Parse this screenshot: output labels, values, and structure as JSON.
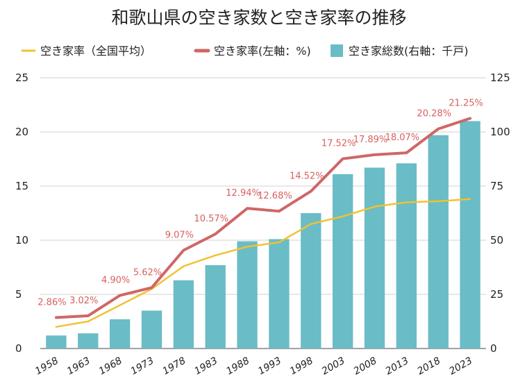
{
  "chart_data": {
    "type": "bar",
    "title": "和歌山県の空き家数と空き家率の推移",
    "categories": [
      "1958",
      "1963",
      "1968",
      "1973",
      "1978",
      "1983",
      "1988",
      "1993",
      "1998",
      "2003",
      "2008",
      "2013",
      "2018",
      "2023"
    ],
    "series": [
      {
        "name": "空き家率（全国平均）",
        "type": "line",
        "axis": "left",
        "color": "#f1c232",
        "values": [
          2.0,
          2.5,
          4.0,
          5.5,
          7.6,
          8.6,
          9.4,
          9.8,
          11.5,
          12.2,
          13.1,
          13.5,
          13.6,
          13.8
        ]
      },
      {
        "name": "空き家率(左軸：%)",
        "type": "line",
        "axis": "left",
        "color": "#d06666",
        "values": [
          2.86,
          3.02,
          4.9,
          5.62,
          9.07,
          10.57,
          12.94,
          12.68,
          14.52,
          17.52,
          17.89,
          18.07,
          20.28,
          21.25
        ],
        "labels": [
          "2.86%",
          "3.02%",
          "4.90%",
          "5.62%",
          "9.07%",
          "10.57%",
          "12.94%",
          "12.68%",
          "14.52%",
          "17.52%",
          "17.89%",
          "18.07%",
          "20.28%",
          "21.25%"
        ]
      },
      {
        "name": "空き家総数(右軸：千戸)",
        "type": "bar",
        "axis": "right",
        "color": "#6abcc6",
        "values": [
          6,
          7,
          13.5,
          17.5,
          31.5,
          38.5,
          49.5,
          50.5,
          62.5,
          80.5,
          83.5,
          85.5,
          98.5,
          105
        ]
      }
    ],
    "left_axis": {
      "min": 0,
      "max": 25,
      "ticks": [
        "0",
        "5",
        "10",
        "15",
        "20",
        "25"
      ]
    },
    "right_axis": {
      "min": 0,
      "max": 125,
      "ticks": [
        "0",
        "25",
        "50",
        "75",
        "100",
        "125"
      ]
    },
    "legend_position": "top",
    "grid": true
  }
}
